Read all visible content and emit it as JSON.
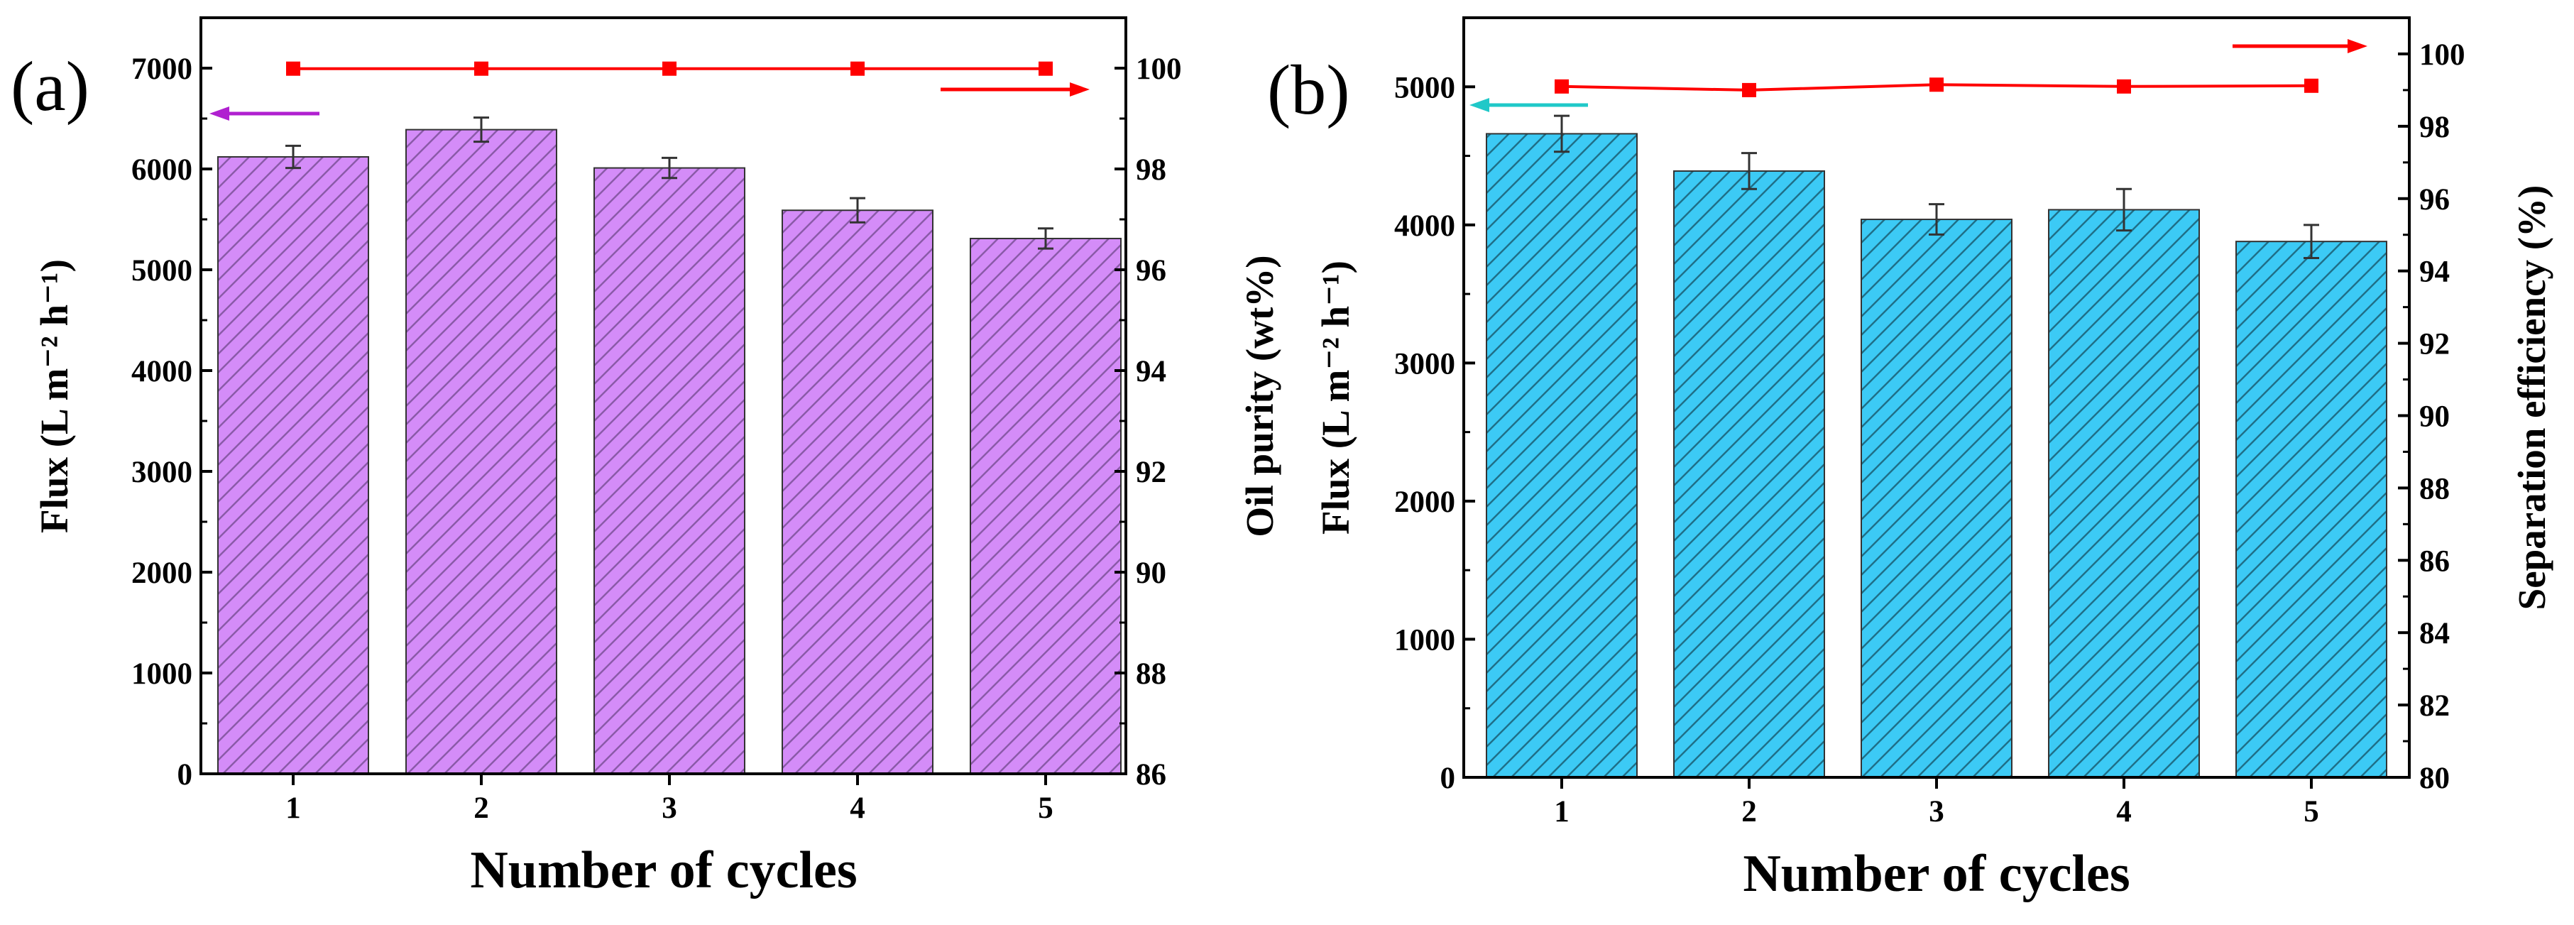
{
  "chart_data": [
    {
      "panel_label": "(a)",
      "type": "bar",
      "categories": [
        "1",
        "2",
        "3",
        "4",
        "5"
      ],
      "xlabel": "Number of cycles",
      "ylabel": "Flux (L m⁻² h⁻¹)",
      "ylim": [
        0,
        7500
      ],
      "yticks": [
        0,
        1000,
        2000,
        3000,
        4000,
        5000,
        6000,
        7000
      ],
      "bar_color": "#d48cf8",
      "hatch_color": "#8a5aa8",
      "left_arrow_color": "#b020d0",
      "series": [
        {
          "name": "Flux",
          "axis": "left",
          "values": [
            6120,
            6390,
            6010,
            5590,
            5310
          ],
          "errors": [
            110,
            120,
            100,
            120,
            100
          ]
        },
        {
          "name": "Oil purity",
          "axis": "right",
          "type": "line",
          "values": [
            99.99,
            99.99,
            99.99,
            99.99,
            99.99
          ],
          "color": "#ff0000"
        }
      ],
      "y2label": "Oil purity (wt%)",
      "y2lim": [
        86,
        101
      ],
      "y2ticks": [
        86,
        88,
        90,
        92,
        94,
        96,
        98,
        100
      ]
    },
    {
      "panel_label": "(b)",
      "type": "bar",
      "categories": [
        "1",
        "2",
        "3",
        "4",
        "5"
      ],
      "xlabel": "Number of cycles",
      "ylabel": "Flux (L m⁻² h⁻¹)",
      "ylim": [
        0,
        5500
      ],
      "yticks": [
        0,
        1000,
        2000,
        3000,
        4000,
        5000
      ],
      "bar_color": "#3ccaf5",
      "hatch_color": "#1f6f88",
      "left_arrow_color": "#20c8c8",
      "series": [
        {
          "name": "Flux",
          "axis": "left",
          "values": [
            4660,
            4390,
            4040,
            4110,
            3880
          ],
          "errors": [
            130,
            130,
            110,
            150,
            120
          ]
        },
        {
          "name": "Separation efficiency",
          "axis": "right",
          "type": "line",
          "values": [
            99.1,
            99.0,
            99.15,
            99.1,
            99.12
          ],
          "color": "#ff0000"
        }
      ],
      "y2label": "Separation efficiency (%)",
      "y2lim": [
        80,
        101
      ],
      "y2ticks": [
        80,
        82,
        84,
        86,
        88,
        90,
        92,
        94,
        96,
        98,
        100
      ]
    }
  ]
}
